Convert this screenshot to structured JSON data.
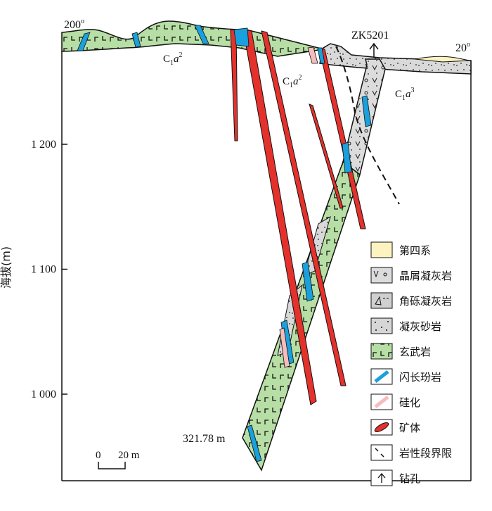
{
  "section": {
    "azimuth_left": "200",
    "azimuth_right": "20",
    "drillhole": "ZK5201",
    "hole_depth": "321.78 m",
    "unit_labels": [
      {
        "main": "C",
        "sub": "1",
        "it": "a",
        "sup": "2"
      },
      {
        "main": "C",
        "sub": "1",
        "it": "a",
        "sup": "2"
      },
      {
        "main": "C",
        "sub": "1",
        "it": "a",
        "sup": "3"
      }
    ]
  },
  "axis": {
    "label": "海拔(m)",
    "ticks": [
      {
        "value": 1200,
        "label": "1 200"
      },
      {
        "value": 1100,
        "label": "1 100"
      },
      {
        "value": 1000,
        "label": "1 000"
      }
    ]
  },
  "scale_bar": {
    "start": "0",
    "end": "20 m"
  },
  "legend": [
    {
      "key": "quaternary",
      "label": "第四系",
      "color": "#fdf3c0"
    },
    {
      "key": "crystal-tuff",
      "label": "晶屑凝灰岩",
      "color": "#dcdcdc"
    },
    {
      "key": "breccia-tuff",
      "label": "角砾凝灰岩",
      "color": "#d0d0d0"
    },
    {
      "key": "tuffaceous-sandstone",
      "label": "凝灰砂岩",
      "color": "#d6d6d6"
    },
    {
      "key": "basalt",
      "label": "玄武岩",
      "color": "#b7dfa5"
    },
    {
      "key": "diorite-porphyrite",
      "label": "闪长玢岩",
      "color": "#1aa0dc"
    },
    {
      "key": "silicification",
      "label": "硅化",
      "color": "#f6bcbc"
    },
    {
      "key": "ore-body",
      "label": "矿体",
      "color": "#e5312c"
    },
    {
      "key": "lithology-boundary",
      "label": "岩性段界限",
      "color": "#111111"
    },
    {
      "key": "drill-hole",
      "label": "钻孔",
      "color": "#111111"
    }
  ]
}
